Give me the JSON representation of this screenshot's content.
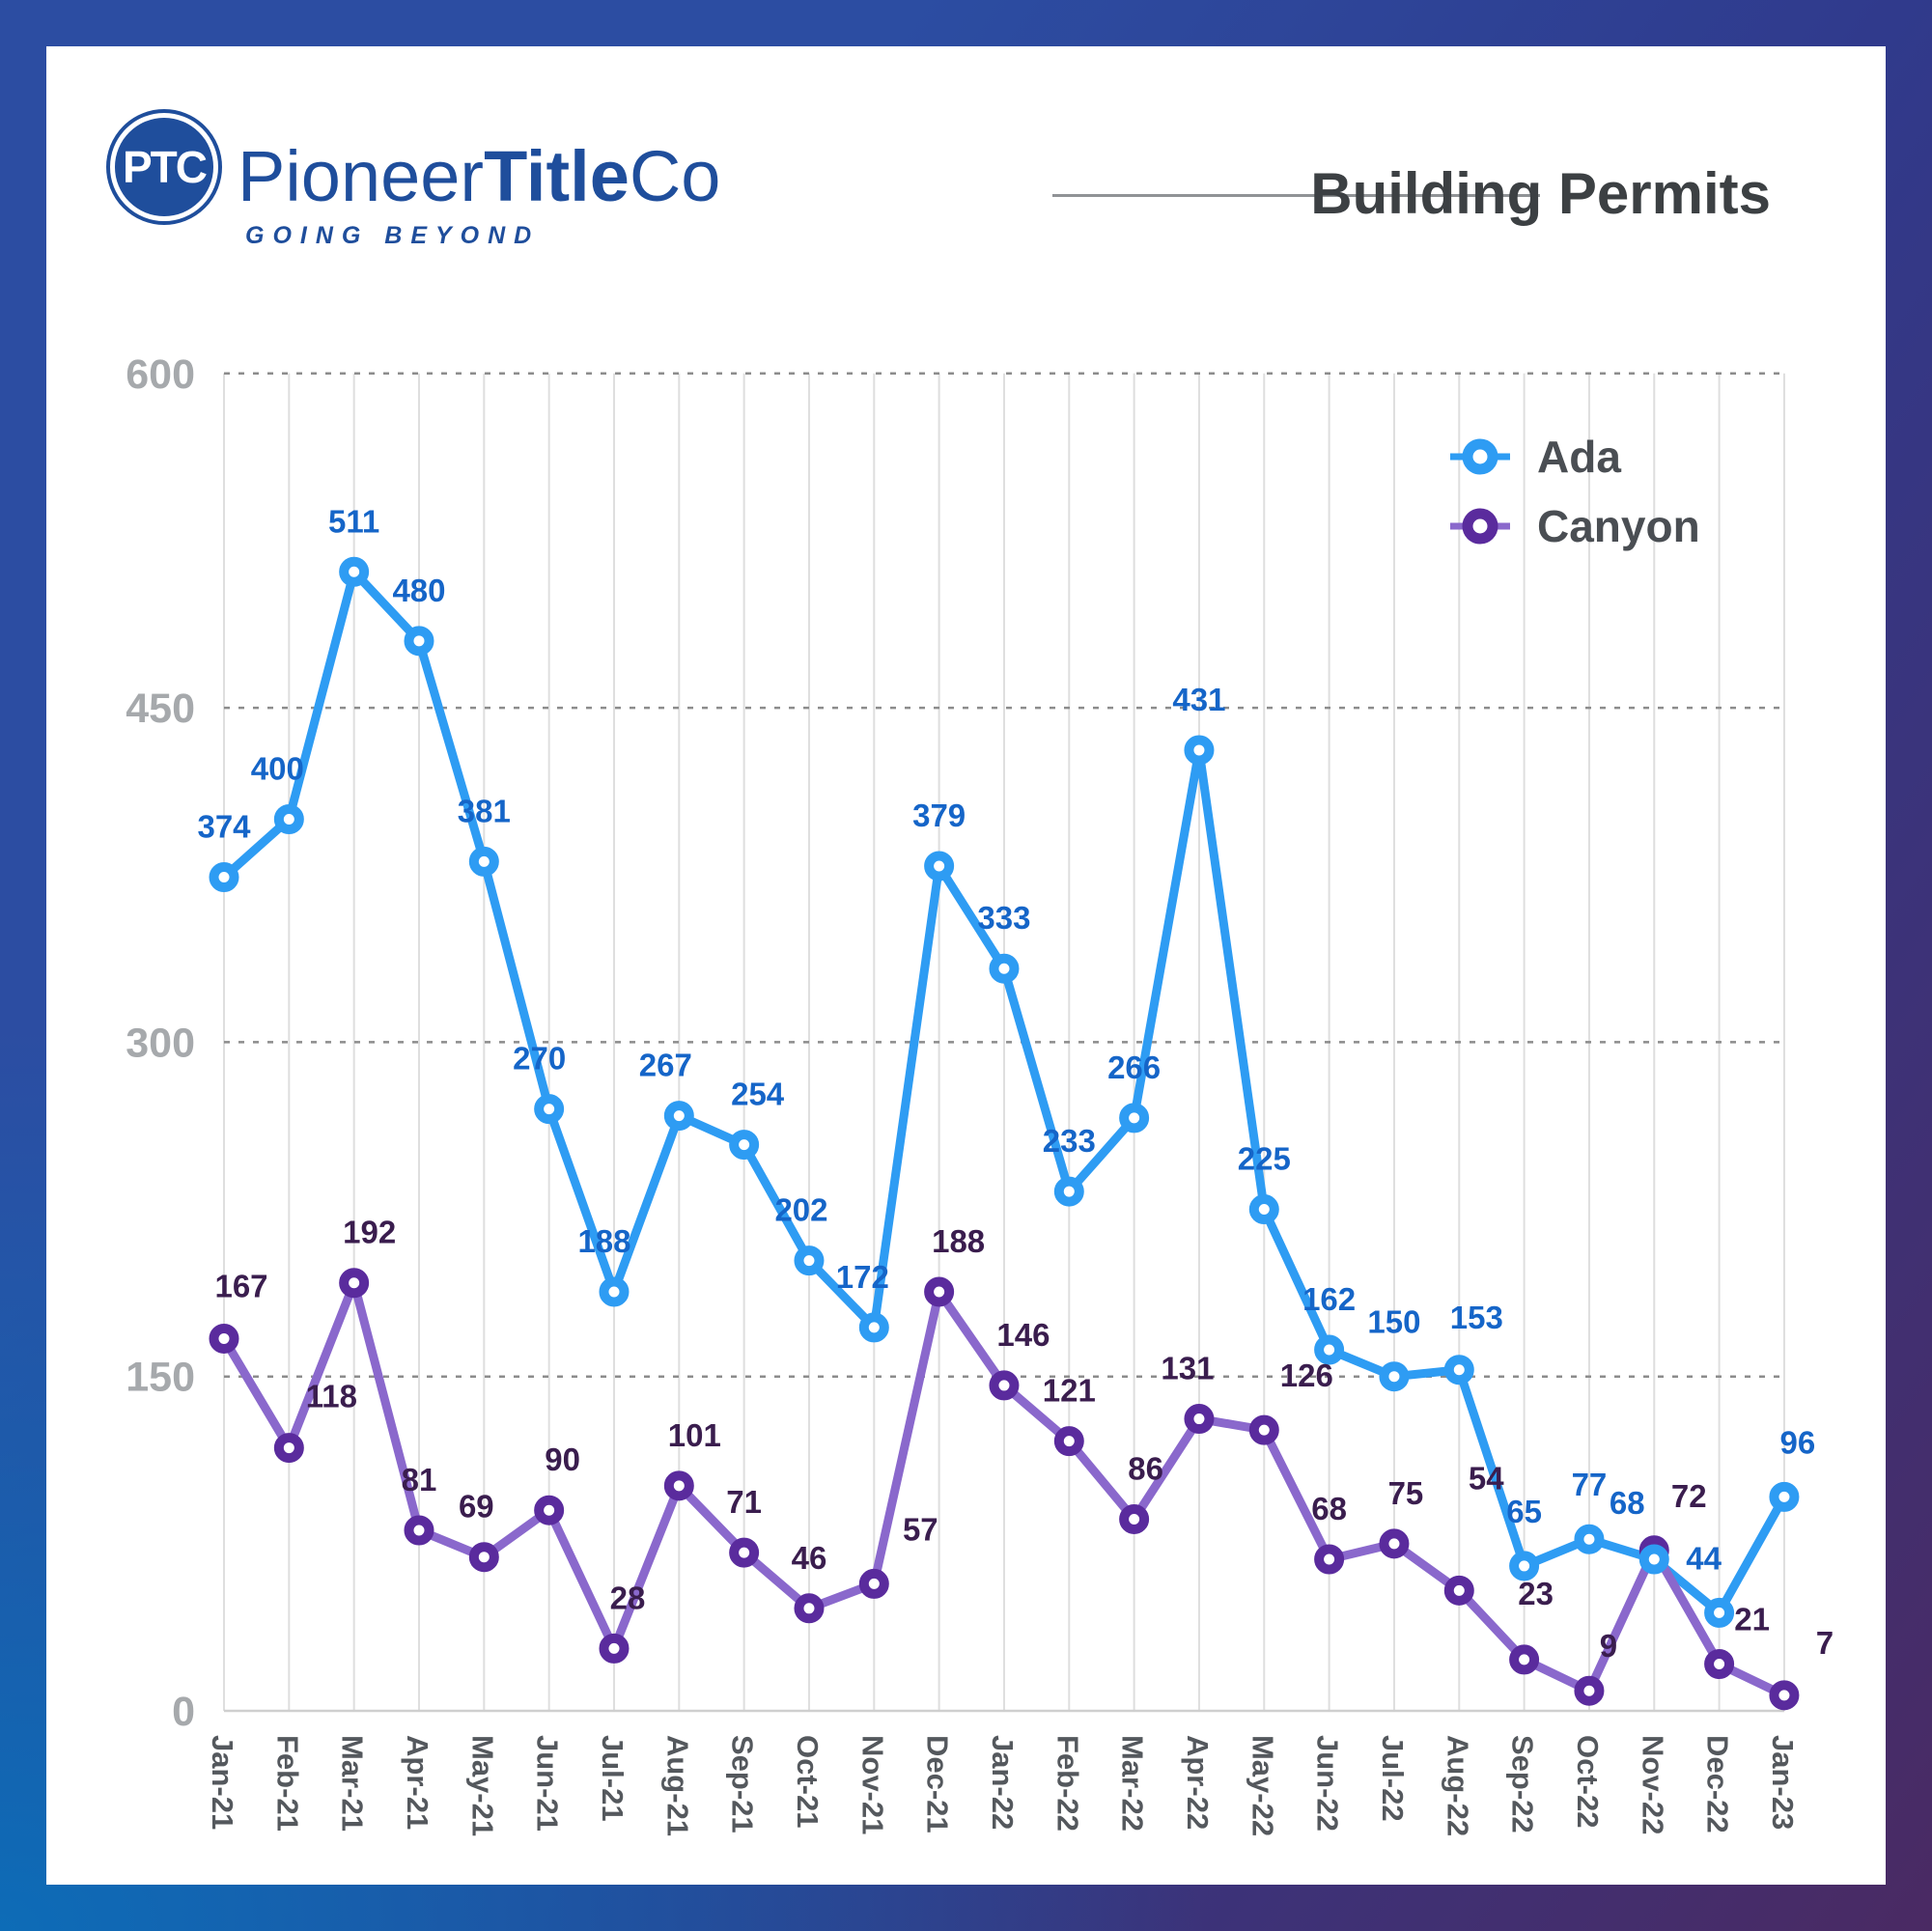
{
  "header": {
    "logo": {
      "monogram": "PTC",
      "brand_pioneer": "Pioneer",
      "brand_title": "Title",
      "brand_co": "Co",
      "tagline": "GOING BEYOND"
    },
    "title": "Building Permits"
  },
  "chart_data": {
    "type": "line",
    "title": "Building Permits",
    "x": [
      "Jan-21",
      "Feb-21",
      "Mar-21",
      "Apr-21",
      "May-21",
      "Jun-21",
      "Jul-21",
      "Aug-21",
      "Sep-21",
      "Oct-21",
      "Nov-21",
      "Dec-21",
      "Jan-22",
      "Feb-22",
      "Mar-22",
      "Apr-22",
      "May-22",
      "Jun-22",
      "Jul-22",
      "Aug-22",
      "Sep-22",
      "Oct-22",
      "Nov-22",
      "Dec-22",
      "Jan-23"
    ],
    "ylim": [
      0,
      600
    ],
    "yticks": [
      0,
      150,
      300,
      450,
      600
    ],
    "grid": {
      "horizontal": "dotted",
      "vertical": "solid",
      "h_color": "#8C8C8C",
      "v_color": "#DEDEDE",
      "baseline_color": "#CFCFCF"
    },
    "legend_position": "top-right",
    "axis_label_color_y": "#A6A9AC",
    "axis_label_color_x": "#54585D",
    "legend_text_color": "#4A4E53",
    "series": [
      {
        "name": "Ada",
        "line_color": "#2E9CF3",
        "marker_color": "#2E9CF3",
        "label_color": "#1565C8",
        "values": [
          374,
          400,
          511,
          480,
          381,
          270,
          188,
          267,
          254,
          202,
          172,
          379,
          333,
          233,
          266,
          431,
          225,
          162,
          150,
          153,
          65,
          77,
          68,
          44,
          96
        ],
        "label_offsets": [
          [
            0,
            -26
          ],
          [
            -12,
            -26
          ],
          [
            0,
            -26
          ],
          [
            0,
            -26
          ],
          [
            0,
            -26
          ],
          [
            -10,
            -26
          ],
          [
            -10,
            -26
          ],
          [
            -14,
            -26
          ],
          [
            14,
            -26
          ],
          [
            -8,
            -26
          ],
          [
            -12,
            -26
          ],
          [
            0,
            -26
          ],
          [
            0,
            -26
          ],
          [
            0,
            -26
          ],
          [
            0,
            -26
          ],
          [
            0,
            -26
          ],
          [
            0,
            -26
          ],
          [
            0,
            -26
          ],
          [
            0,
            -30
          ],
          [
            18,
            -28
          ],
          [
            0,
            -30
          ],
          [
            0,
            -30
          ],
          [
            -28,
            -32
          ],
          [
            -16,
            -30
          ],
          [
            14,
            -30
          ]
        ]
      },
      {
        "name": "Canyon",
        "line_color": "#8A68CC",
        "marker_color": "#5A2B9D",
        "label_color": "#3A1D4E",
        "values": [
          167,
          118,
          192,
          81,
          69,
          90,
          28,
          101,
          71,
          46,
          57,
          188,
          146,
          121,
          86,
          131,
          126,
          68,
          75,
          54,
          23,
          9,
          72,
          21,
          7
        ],
        "label_offsets": [
          [
            18,
            -28
          ],
          [
            44,
            -27
          ],
          [
            16,
            -26
          ],
          [
            0,
            -26
          ],
          [
            -8,
            -26
          ],
          [
            14,
            -26
          ],
          [
            14,
            -26
          ],
          [
            16,
            -26
          ],
          [
            0,
            -26
          ],
          [
            0,
            -26
          ],
          [
            48,
            -30
          ],
          [
            20,
            -26
          ],
          [
            20,
            -26
          ],
          [
            0,
            -26
          ],
          [
            12,
            -26
          ],
          [
            -12,
            -26
          ],
          [
            44,
            -30
          ],
          [
            0,
            -26
          ],
          [
            12,
            -26
          ],
          [
            28,
            -90
          ],
          [
            12,
            -42
          ],
          [
            20,
            -20
          ],
          [
            36,
            -30
          ],
          [
            34,
            -20
          ],
          [
            42,
            -28
          ]
        ]
      }
    ]
  }
}
